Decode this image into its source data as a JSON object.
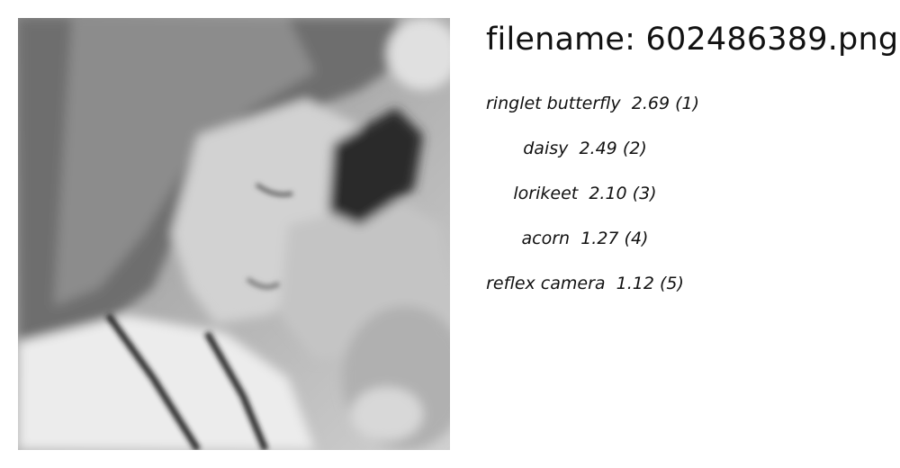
{
  "image": {
    "subject": "grayscale photo of a young girl with eyes closed smelling flowers"
  },
  "filename_prefix": "filename: ",
  "filename": "602486389.png",
  "predictions": [
    {
      "label": "ringlet butterfly",
      "score": "2.69",
      "rank": "(1)"
    },
    {
      "label": "daisy",
      "score": "2.49",
      "rank": "(2)"
    },
    {
      "label": "lorikeet",
      "score": "2.10",
      "rank": "(3)"
    },
    {
      "label": "acorn",
      "score": "1.27",
      "rank": "(4)"
    },
    {
      "label": "reflex camera",
      "score": "1.12",
      "rank": "(5)"
    }
  ]
}
